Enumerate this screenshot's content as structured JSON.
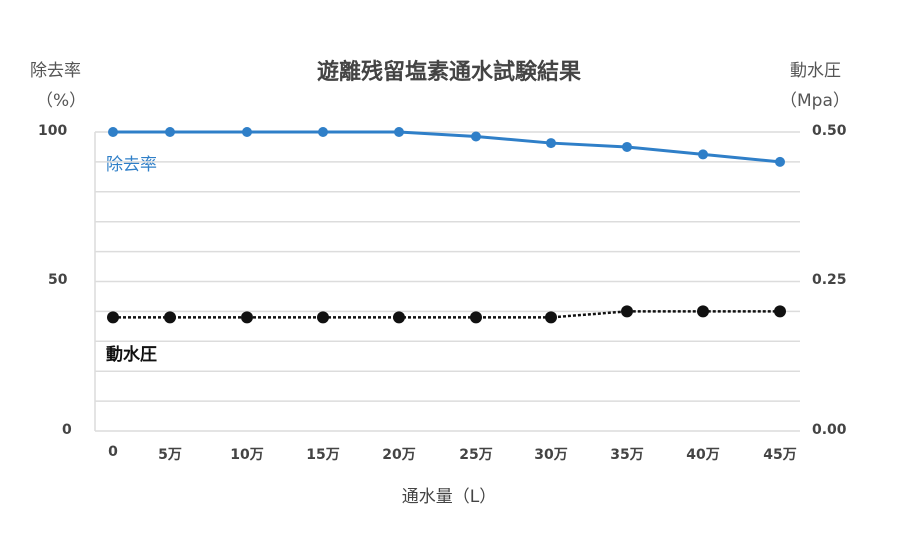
{
  "chart_data": {
    "type": "line",
    "title": "遊離残留塩素通水試験結果",
    "xlabel": "通水量（L）",
    "ylabel_left": [
      "除去率",
      "（%）"
    ],
    "ylabel_right": [
      "動水圧",
      "（Mpa）"
    ],
    "categories": [
      "0",
      "5万",
      "10万",
      "15万",
      "20万",
      "25万",
      "30万",
      "35万",
      "40万",
      "45万"
    ],
    "y_left": {
      "range": [
        0,
        100
      ],
      "ticks": [
        "0",
        "50",
        "100"
      ]
    },
    "y_right": {
      "range": [
        0,
        0.5
      ],
      "ticks": [
        "0.00",
        "0.25",
        "0.50"
      ]
    },
    "grid": true,
    "series": [
      {
        "name": "除去率",
        "axis": "left",
        "color": "#2f7fc8",
        "style": "solid",
        "values": [
          100,
          100,
          100,
          100,
          100,
          98.5,
          96.3,
          95,
          92.5,
          90
        ]
      },
      {
        "name": "動水圧",
        "axis": "right",
        "color": "#111111",
        "style": "dotted",
        "values": [
          0.19,
          0.19,
          0.19,
          0.19,
          0.19,
          0.19,
          0.19,
          0.2,
          0.2,
          0.2
        ]
      }
    ]
  }
}
